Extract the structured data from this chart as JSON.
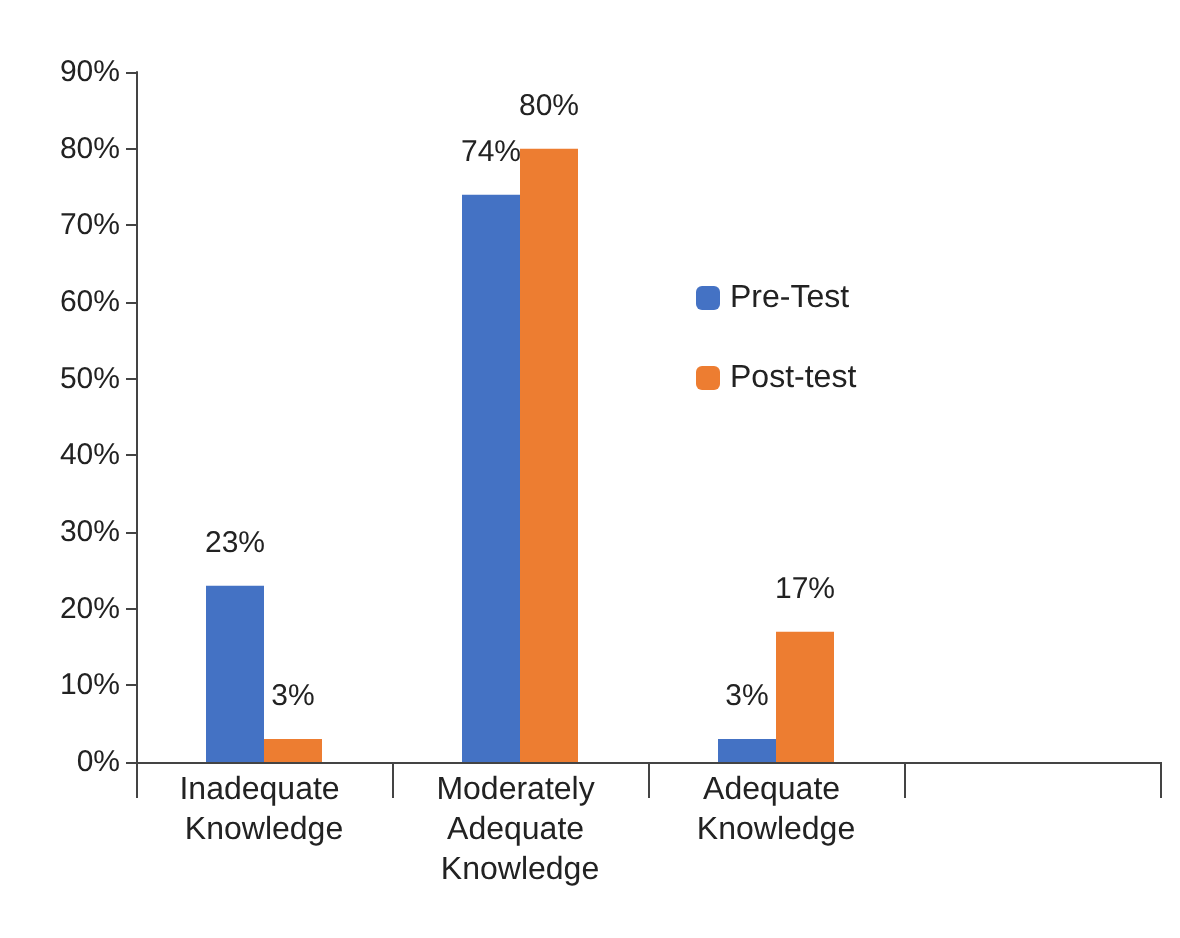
{
  "chart_data": {
    "type": "bar",
    "categories": [
      "Inadequate Knowledge",
      "Moderately Adequate Knowledge",
      "Adequate Knowledge",
      null
    ],
    "series": [
      {
        "name": "Pre-Test",
        "color": "#4472c4",
        "values": [
          23,
          74,
          3,
          null
        ],
        "value_labels": [
          "23%",
          "74%",
          "3%",
          null
        ]
      },
      {
        "name": "Post-test",
        "color": "#ed7d31",
        "values": [
          3,
          80,
          17,
          null
        ],
        "value_labels": [
          "3%",
          "80%",
          "17%",
          null
        ]
      }
    ],
    "ylim": [
      0,
      90
    ],
    "yticks": [
      {
        "value": 0,
        "label": "0%"
      },
      {
        "value": 10,
        "label": "10%"
      },
      {
        "value": 20,
        "label": "20%"
      },
      {
        "value": 30,
        "label": "30%"
      },
      {
        "value": 40,
        "label": "40%"
      },
      {
        "value": 50,
        "label": "50%"
      },
      {
        "value": 60,
        "label": "60%"
      },
      {
        "value": 70,
        "label": "70%"
      },
      {
        "value": 80,
        "label": "80%"
      },
      {
        "value": 90,
        "label": "90%"
      }
    ],
    "grid": false,
    "legend": "right"
  }
}
